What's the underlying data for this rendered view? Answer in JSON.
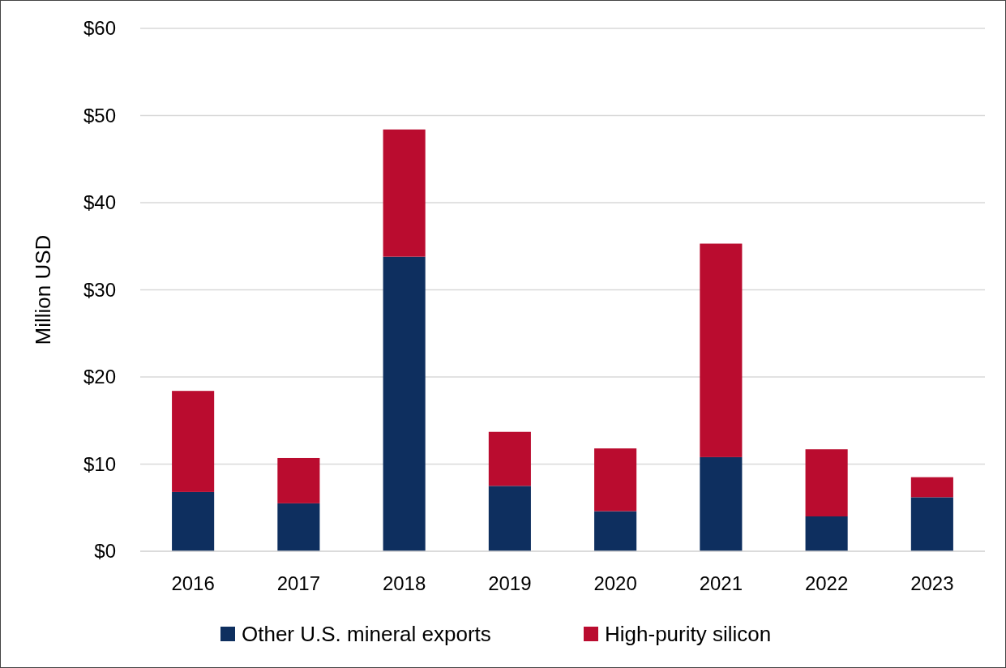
{
  "chart_data": {
    "type": "bar",
    "stacked": true,
    "ylabel": "Million USD",
    "categories": [
      "2016",
      "2017",
      "2018",
      "2019",
      "2020",
      "2021",
      "2022",
      "2023"
    ],
    "series": [
      {
        "name": "Other U.S. mineral exports",
        "color": "#0e2f5f",
        "values": [
          6.8,
          5.5,
          33.8,
          7.5,
          4.6,
          10.8,
          4.0,
          6.2
        ]
      },
      {
        "name": "High-purity silicon",
        "color": "#ba0c2f",
        "values": [
          11.6,
          5.2,
          14.6,
          6.2,
          7.2,
          24.5,
          7.7,
          2.3
        ]
      }
    ],
    "ylim": [
      0,
      60
    ],
    "yticks": [
      {
        "value": 0,
        "label": "$0"
      },
      {
        "value": 10,
        "label": "$10"
      },
      {
        "value": 20,
        "label": "$20"
      },
      {
        "value": 30,
        "label": "$30"
      },
      {
        "value": 40,
        "label": "$40"
      },
      {
        "value": 50,
        "label": "$50"
      },
      {
        "value": 60,
        "label": "$60"
      }
    ],
    "grid": "y",
    "legend": "bottom"
  }
}
